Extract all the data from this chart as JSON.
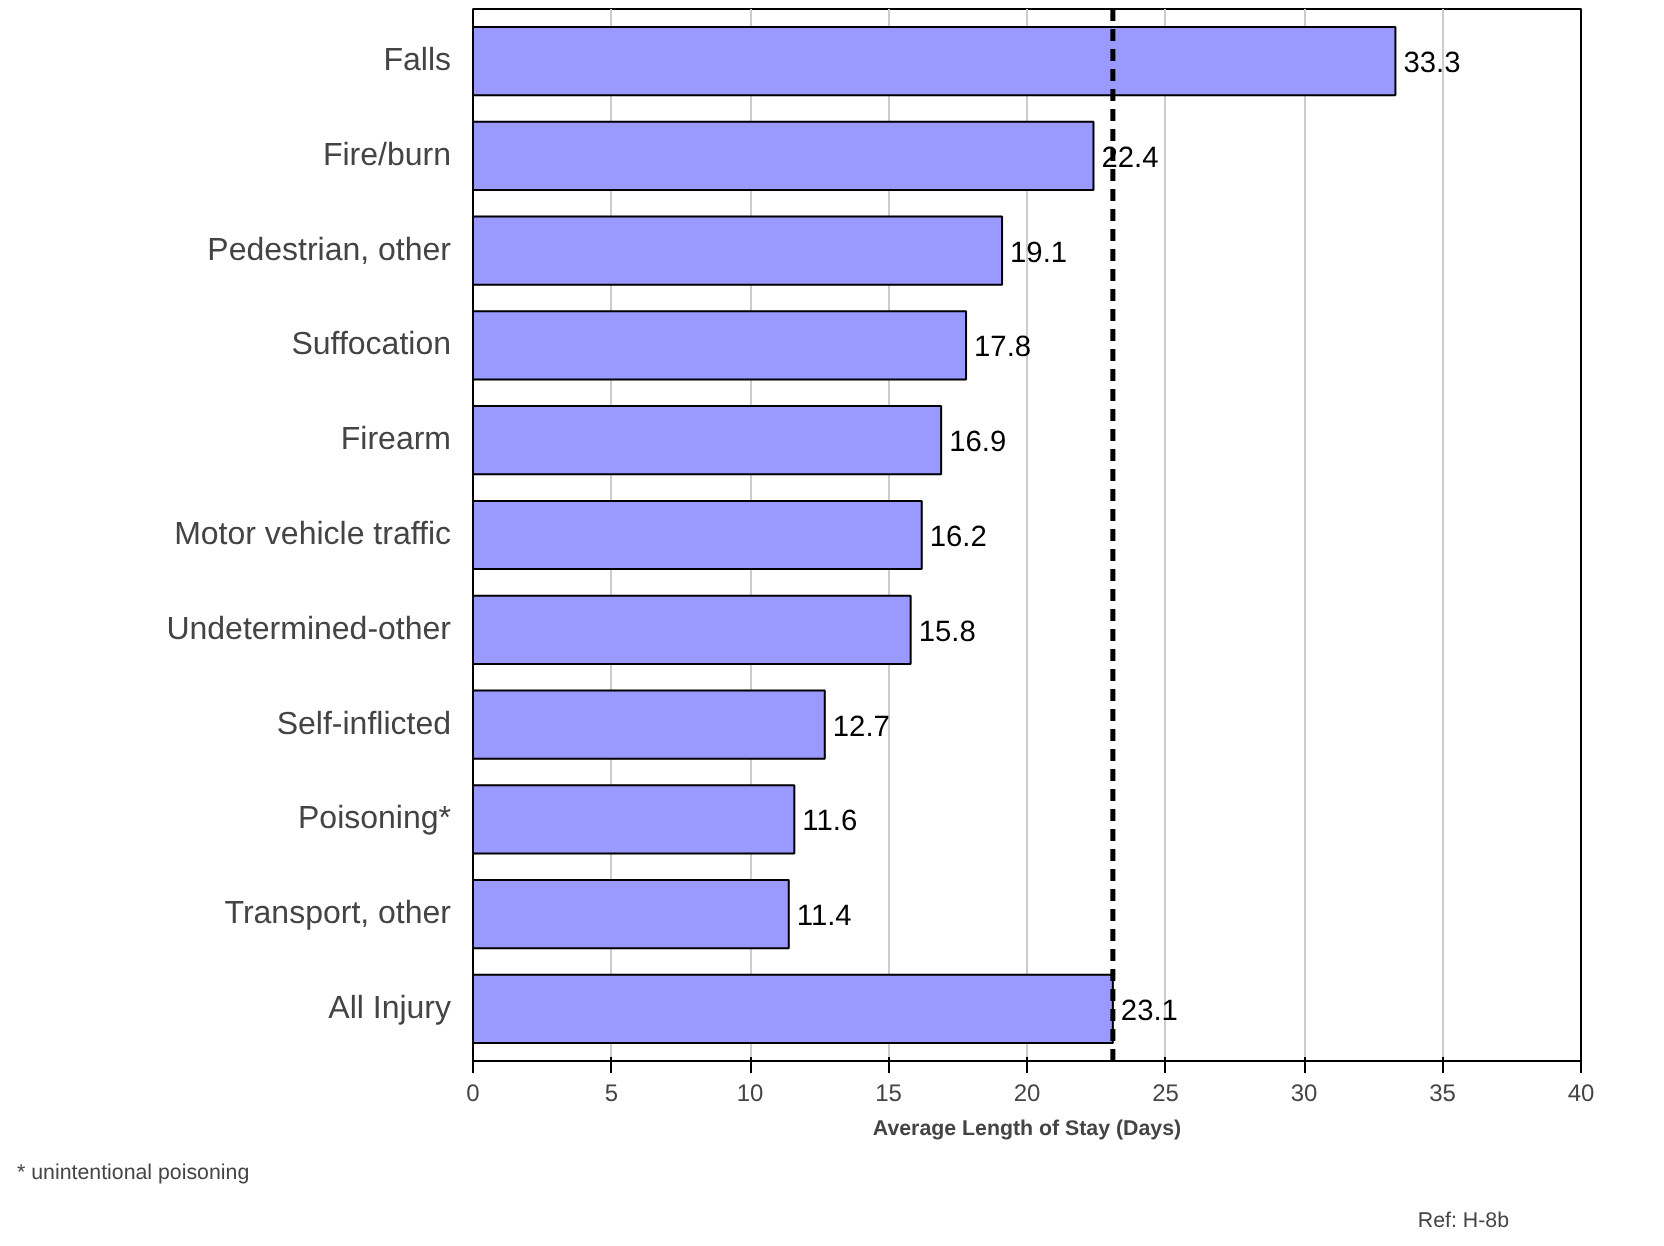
{
  "chart_data": {
    "type": "bar",
    "orientation": "horizontal",
    "xlabel": "Average Length of Stay (Days)",
    "categories": [
      "Falls",
      "Fire/burn",
      "Pedestrian, other",
      "Suffocation",
      "Firearm",
      "Motor vehicle traffic",
      "Undetermined-other",
      "Self-inflicted",
      "Poisoning*",
      "Transport, other",
      "All Injury"
    ],
    "values": [
      33.3,
      22.4,
      19.1,
      17.8,
      16.9,
      16.2,
      15.8,
      12.7,
      11.6,
      11.4,
      23.1
    ],
    "color": "#9999ff",
    "data_labels": true,
    "xlim": [
      0,
      40
    ],
    "xticks": [
      0,
      5,
      10,
      15,
      20,
      25,
      30,
      35,
      40
    ],
    "grid": "x",
    "ref_lines": [
      {
        "axis": "x",
        "value": 23.1,
        "color": "#000000",
        "line_style": "dashed"
      }
    ],
    "annotations": [
      "* unintentional poisoning",
      "Ref: H-8b"
    ]
  }
}
